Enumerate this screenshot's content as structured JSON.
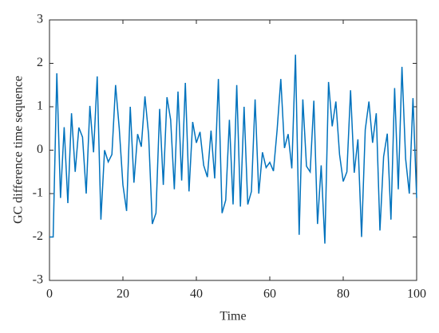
{
  "chart_data": {
    "type": "line",
    "x_label": "Time",
    "y_label": "GC difference time sequence",
    "x": [
      0,
      1,
      2,
      3,
      4,
      5,
      6,
      7,
      8,
      9,
      10,
      11,
      12,
      13,
      14,
      15,
      16,
      17,
      18,
      19,
      20,
      21,
      22,
      23,
      24,
      25,
      26,
      27,
      28,
      29,
      30,
      31,
      32,
      33,
      34,
      35,
      36,
      37,
      38,
      39,
      40,
      41,
      42,
      43,
      44,
      45,
      46,
      47,
      48,
      49,
      50,
      51,
      52,
      53,
      54,
      55,
      56,
      57,
      58,
      59,
      60,
      61,
      62,
      63,
      64,
      65,
      66,
      67,
      68,
      69,
      70,
      71,
      72,
      73,
      74,
      75,
      76,
      77,
      78,
      79,
      80,
      81,
      82,
      83,
      84,
      85,
      86,
      87,
      88,
      89,
      90,
      91,
      92,
      93,
      94,
      95,
      96,
      97,
      98,
      99,
      100
    ],
    "series": [
      {
        "name": "GC difference",
        "color": "#0072bd",
        "values": [
          -2,
          -2,
          1.77,
          -1.1,
          0.53,
          -1.22,
          0.85,
          -0.5,
          0.52,
          0.3,
          -1.0,
          1.02,
          -0.05,
          1.7,
          -1.6,
          0.0,
          -0.27,
          -0.1,
          1.5,
          0.5,
          -0.8,
          -1.4,
          1.0,
          -0.75,
          0.37,
          0.08,
          1.24,
          0.35,
          -1.7,
          -1.45,
          0.95,
          -0.8,
          1.22,
          0.7,
          -0.9,
          1.35,
          -0.7,
          1.55,
          -0.95,
          0.65,
          0.17,
          0.42,
          -0.35,
          -0.62,
          0.45,
          -0.65,
          1.64,
          -1.45,
          -1.15,
          0.7,
          -1.25,
          1.5,
          -1.3,
          1.0,
          -1.25,
          -0.95,
          1.17,
          -1.0,
          -0.05,
          -0.4,
          -0.28,
          -0.48,
          0.47,
          1.64,
          0.05,
          0.37,
          -0.42,
          2.2,
          -1.95,
          1.17,
          -0.37,
          -0.5,
          1.14,
          -1.7,
          -0.35,
          -2.15,
          1.57,
          0.55,
          1.12,
          -0.1,
          -0.72,
          -0.5,
          1.38,
          -0.52,
          0.25,
          -2.0,
          0.47,
          1.12,
          0.17,
          0.85,
          -1.85,
          -0.15,
          0.38,
          -1.6,
          1.43,
          -0.9,
          1.92,
          -0.2,
          -1.0,
          1.2,
          -1.1
        ]
      }
    ],
    "xlim": [
      0,
      100
    ],
    "xticks": [
      0,
      20,
      40,
      60,
      80,
      100
    ],
    "ylim": [
      -3,
      3
    ],
    "yticks": [
      -3,
      -2,
      -1,
      0,
      1,
      2,
      3
    ]
  }
}
